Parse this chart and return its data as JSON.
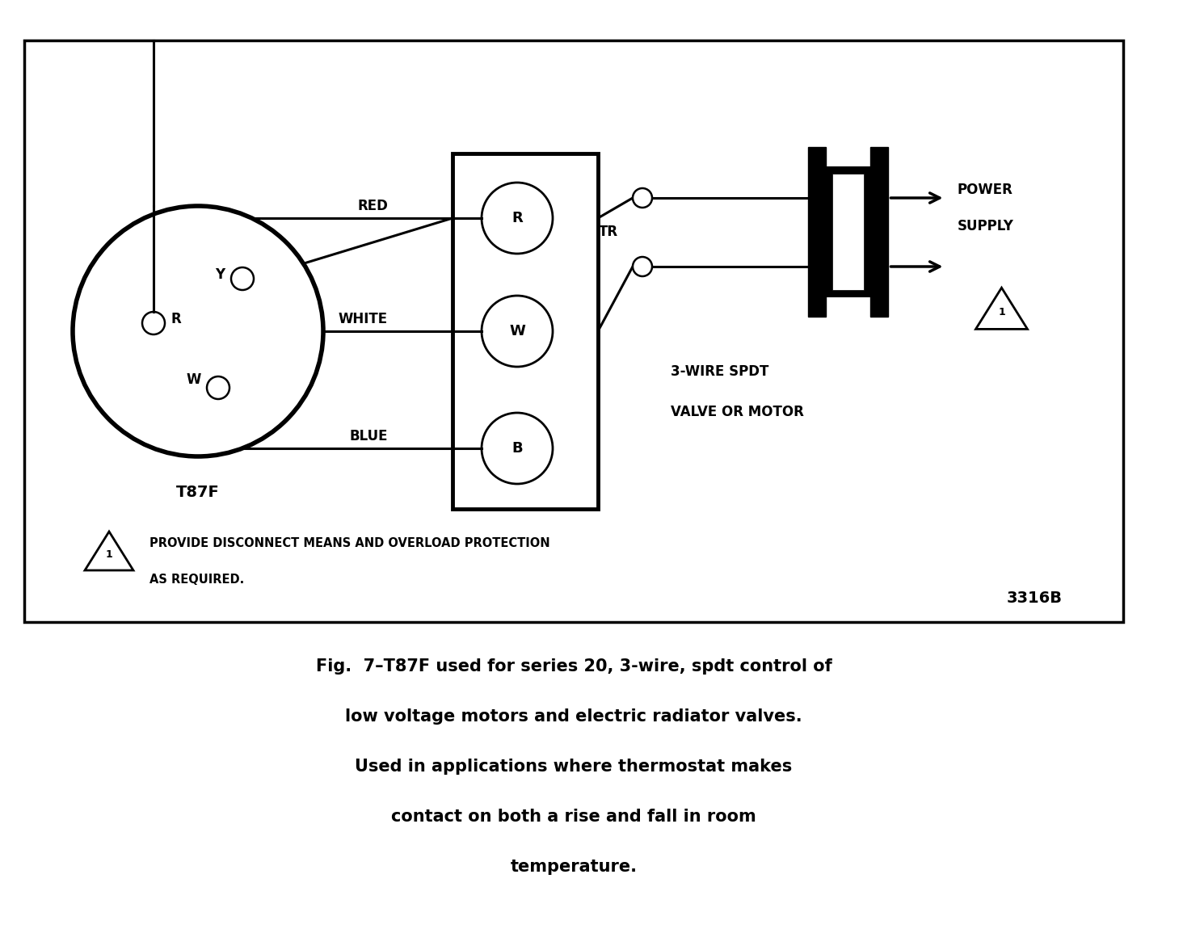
{
  "bg_color": "#ffffff",
  "border_color": "#000000",
  "title_line1": "Fig.  7–T87F used for series 20, 3-wire, spdt control of",
  "title_line2": "low voltage motors and electric radiator valves.",
  "title_line3": "Used in applications where thermostat makes",
  "title_line4": "contact on both a rise and fall in room",
  "title_line5": "temperature.",
  "diagram_label": "3316B",
  "warning_text1": "PROVIDE DISCONNECT MEANS AND OVERLOAD PROTECTION",
  "warning_text2": "AS REQUIRED.",
  "thermostat_label": "T87F",
  "control_box_label_line1": "3-WIRE SPDT",
  "control_box_label_line2": "VALVE OR MOTOR",
  "tr_label": "TR"
}
